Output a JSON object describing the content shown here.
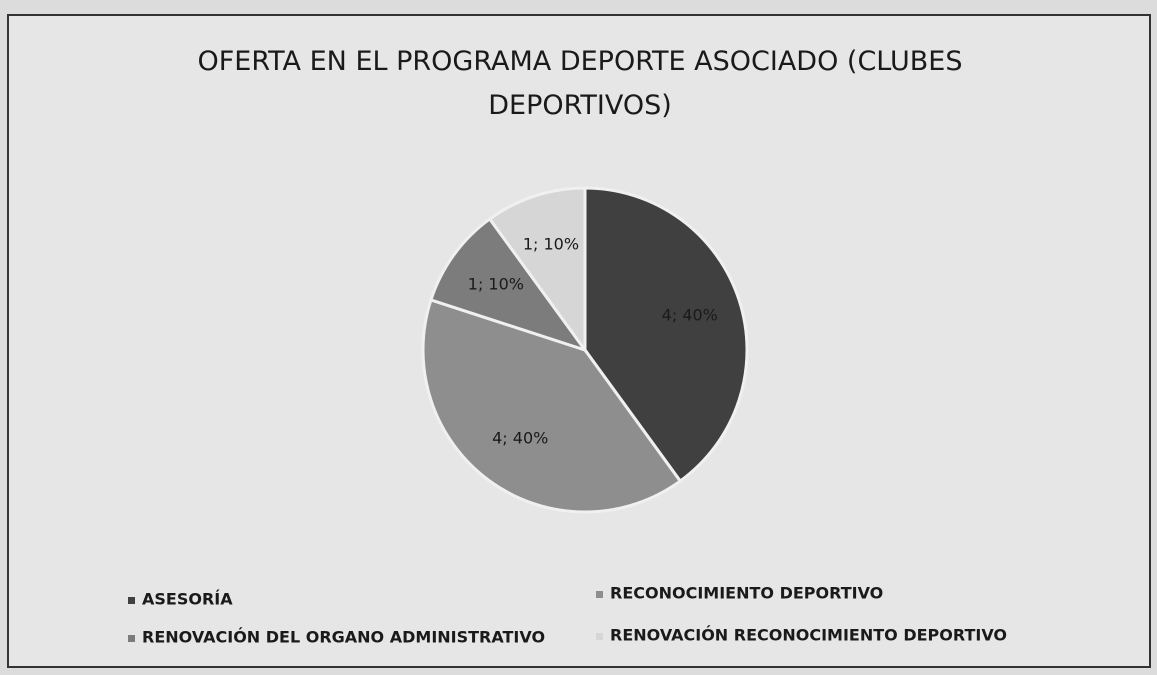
{
  "chart_data": {
    "type": "pie",
    "title": "OFERTA EN EL PROGRAMA DEPORTE ASOCIADO (CLUBES DEPORTIVOS)",
    "categories": [
      "ASESORÍA",
      "RECONOCIMIENTO DEPORTIVO",
      "RENOVACIÓN DEL ORGANO ADMINISTRATIVO",
      "RENOVACIÓN RECONOCIMIENTO DEPORTIVO"
    ],
    "values": [
      4,
      4,
      1,
      1
    ],
    "value_labels": [
      "4; 40%",
      "4; 40%",
      "1; 10%",
      "1; 10%"
    ],
    "colors": [
      "#404040",
      "#8e8e8e",
      "#7c7c7c",
      "#d6d6d6"
    ],
    "legend": "bottom"
  }
}
